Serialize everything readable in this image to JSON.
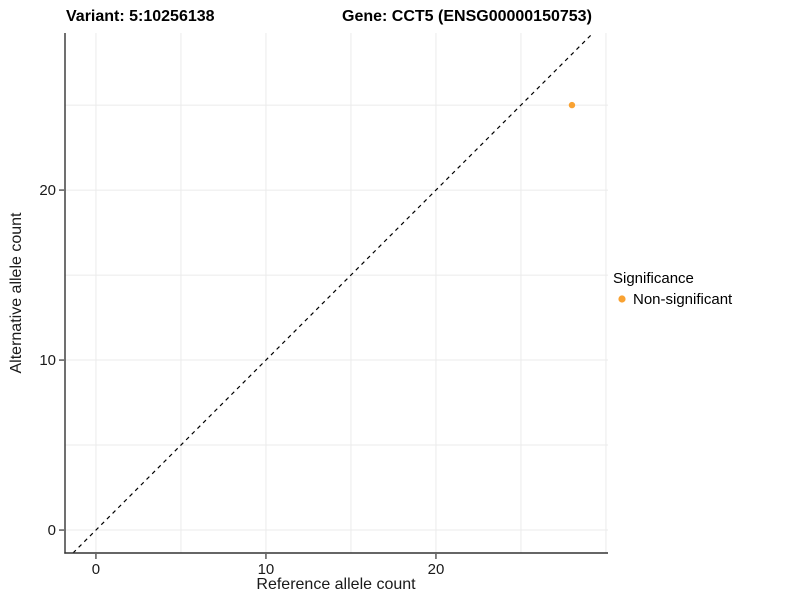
{
  "chart_data": {
    "type": "scatter",
    "titles": {
      "variant": "Variant: 5:10256138",
      "gene": "Gene: CCT5 (ENSG00000150753)"
    },
    "xlabel": "Reference allele count",
    "ylabel": "Alternative allele count",
    "x_ticks": [
      0,
      10,
      20
    ],
    "y_ticks": [
      0,
      10,
      20
    ],
    "grid_step": 5,
    "xlim": [
      -1.82,
      30.12
    ],
    "ylim": [
      -1.35,
      29.24
    ],
    "identity_line": {
      "slope": 1,
      "intercept": 0,
      "style": "dashed"
    },
    "points": [
      {
        "x": 28,
        "y": 25,
        "series": "Non-significant"
      }
    ],
    "legend": {
      "title": "Significance",
      "entries": [
        {
          "label": "Non-significant",
          "color": "#F9A232"
        }
      ],
      "position": "right"
    },
    "colors": {
      "point": "#F9A232",
      "grid": "#ebebeb",
      "axis": "#333333",
      "identity_line": "#000000"
    }
  }
}
